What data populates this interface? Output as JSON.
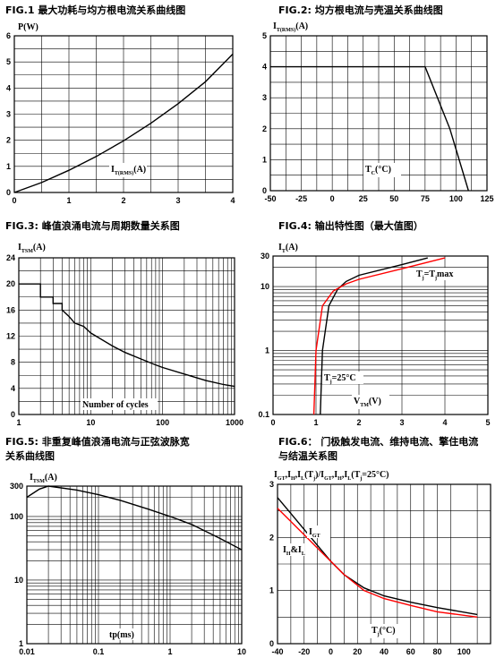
{
  "figures": [
    {
      "fig_no": "FIG.1",
      "title": "最大功耗与均方根电流关系曲线图"
    },
    {
      "fig_no": "FIG.2:",
      "title": "均方根电流与壳温关系曲线图"
    },
    {
      "fig_no": "FIG.3:",
      "title": "峰值浪涌电流与周期数量关系图"
    },
    {
      "fig_no": "FIG.4:",
      "title": "输出特性图（最大值图）"
    },
    {
      "fig_no": "FIG.5:",
      "title": "非重复峰值浪涌电流与正弦波脉宽",
      "title_line2": "关系曲线图"
    },
    {
      "fig_no": "FIG.6：",
      "title": "门极触发电流、维持电流、擎住电流",
      "title_line2": "与结温关系图"
    }
  ],
  "chart_data": [
    {
      "type": "line",
      "xlim": [
        0,
        4
      ],
      "ylim": [
        0,
        6
      ],
      "x_ticks": [
        "0",
        "1",
        "2",
        "3",
        "4"
      ],
      "y_ticks": [
        "0",
        "1",
        "2",
        "3",
        "4",
        "5",
        "6"
      ],
      "ylabel": "P(W)",
      "xlabel_main": "I",
      "xlabel_sub": "T(RMS)",
      "xlabel_unit": "(A)",
      "grid": true,
      "series": [
        {
          "x": [
            0,
            0.5,
            1,
            1.5,
            2,
            2.5,
            3,
            3.5,
            4
          ],
          "y": [
            0,
            0.38,
            0.85,
            1.38,
            1.98,
            2.65,
            3.4,
            4.24,
            5.3
          ],
          "color": "#000000"
        }
      ]
    },
    {
      "type": "line",
      "xlim": [
        -50,
        125
      ],
      "ylim": [
        0,
        5
      ],
      "x_ticks": [
        "-50",
        "-25",
        "0",
        "25",
        "50",
        "75",
        "100",
        "125"
      ],
      "y_ticks": [
        "0",
        "1",
        "2",
        "3",
        "4",
        "5"
      ],
      "ylabel_main": "I",
      "ylabel_sub": "T(RMS)",
      "ylabel_unit": "(A)",
      "xlabel_main": "T",
      "xlabel_sub": "C",
      "xlabel_unit": "(°C)",
      "grid": true,
      "series": [
        {
          "x": [
            -50,
            75,
            95,
            110
          ],
          "y": [
            4,
            4,
            2,
            0
          ],
          "color": "#000000"
        }
      ]
    },
    {
      "type": "line",
      "xscale": "log",
      "xlim": [
        1,
        1000
      ],
      "ylim": [
        0,
        24
      ],
      "x_ticks": [
        "1",
        "10",
        "100",
        "1000"
      ],
      "y_ticks": [
        "0",
        "4",
        "8",
        "12",
        "16",
        "20",
        "24"
      ],
      "ylabel_main": "I",
      "ylabel_sub": "TSM",
      "ylabel_unit": "(A)",
      "xlabel": "Number of cycles",
      "grid": true,
      "series": [
        {
          "x": [
            1,
            2,
            2,
            3,
            3,
            4,
            4,
            5,
            6,
            8,
            10,
            20,
            30,
            50,
            80,
            100,
            200,
            400,
            700,
            1000
          ],
          "y": [
            20,
            20,
            18,
            18,
            17,
            17,
            16,
            15,
            14,
            13.5,
            12.5,
            10.5,
            9.5,
            8.5,
            7.6,
            7.2,
            6.2,
            5.2,
            4.6,
            4.3
          ],
          "color": "#000000"
        }
      ]
    },
    {
      "type": "line",
      "yscale": "log",
      "xlim": [
        0,
        5
      ],
      "ylim": [
        0.1,
        30
      ],
      "x_ticks": [
        "0",
        "1",
        "2",
        "3",
        "4",
        "5"
      ],
      "y_ticks": [
        "0.1",
        "1",
        "10",
        "30"
      ],
      "ylabel_main": "I",
      "ylabel_sub": "T",
      "ylabel_unit": "(A)",
      "xlabel_main": "V",
      "xlabel_sub": "TM",
      "xlabel_unit": "(V)",
      "annotations": [
        {
          "text_main": "T",
          "text_sub": "j",
          "text_rest": "=25°C"
        },
        {
          "text_main": "T",
          "text_sub": "j",
          "text_mid": "=T",
          "text_sub2": "j",
          "text_rest": "max"
        }
      ],
      "grid": true,
      "series": [
        {
          "name": "T=25°C",
          "x": [
            1.1,
            1.15,
            1.3,
            1.5,
            1.7,
            2.0,
            3.0,
            3.6
          ],
          "y": [
            0.1,
            1,
            5,
            9,
            12,
            15,
            22,
            28
          ],
          "color": "#000000"
        },
        {
          "name": "Tmax",
          "x": [
            0.95,
            1.0,
            1.15,
            1.4,
            1.7,
            2.0,
            3.0,
            4.0
          ],
          "y": [
            0.1,
            1,
            5,
            8.5,
            11,
            13,
            19,
            28
          ],
          "color": "#ff0000"
        }
      ]
    },
    {
      "type": "line",
      "xscale": "log",
      "yscale": "log",
      "xlim": [
        0.01,
        10
      ],
      "ylim": [
        1,
        300
      ],
      "x_ticks": [
        "0.01",
        "0.1",
        "1",
        "10"
      ],
      "y_ticks": [
        "1",
        "10",
        "100",
        "300"
      ],
      "ylabel_main": "I",
      "ylabel_sub": "TSM",
      "ylabel_unit": "(A)",
      "xlabel": "tp(ms)",
      "grid": true,
      "series": [
        {
          "x": [
            0.01,
            0.015,
            0.02,
            0.05,
            0.1,
            0.2,
            0.5,
            1,
            2,
            5,
            10
          ],
          "y": [
            200,
            270,
            300,
            260,
            220,
            180,
            130,
            100,
            75,
            45,
            30
          ],
          "color": "#000000"
        }
      ]
    },
    {
      "type": "line",
      "xlim": [
        -40,
        120
      ],
      "ylim": [
        0,
        3
      ],
      "x_ticks": [
        "-40",
        "-20",
        "0",
        "20",
        "40",
        "60",
        "80",
        "100"
      ],
      "y_ticks": [
        "0",
        "1",
        "2",
        "3"
      ],
      "ylabel_text": "I<sub>GT</sub>,I<sub>H</sub>,I<sub>L</sub>(T<sub>j</sub>)/I<sub>GT</sub>,I<sub>H</sub>,I<sub>L</sub>(T<sub>j</sub>=25°C)",
      "xlabel_main": "T",
      "xlabel_sub": "j",
      "xlabel_unit": "(°C)",
      "annotations": [
        {
          "text_main": "I",
          "text_sub": "GT"
        },
        {
          "text_main": "I",
          "text_sub": "H",
          "text_mid": "&I",
          "text_sub2": "L"
        }
      ],
      "grid": true,
      "series": [
        {
          "name": "IGT",
          "x": [
            -40,
            -30,
            -20,
            -10,
            0,
            10,
            25,
            40,
            60,
            80,
            110
          ],
          "y": [
            2.75,
            2.45,
            2.15,
            1.85,
            1.55,
            1.3,
            1.05,
            0.9,
            0.78,
            0.68,
            0.55
          ],
          "color": "#000000"
        },
        {
          "name": "IH&IL",
          "x": [
            -40,
            -30,
            -20,
            -10,
            0,
            10,
            25,
            40,
            60,
            80,
            110
          ],
          "y": [
            2.55,
            2.3,
            2.05,
            1.8,
            1.55,
            1.3,
            1.0,
            0.85,
            0.72,
            0.6,
            0.5
          ],
          "color": "#ff0000"
        }
      ]
    }
  ]
}
